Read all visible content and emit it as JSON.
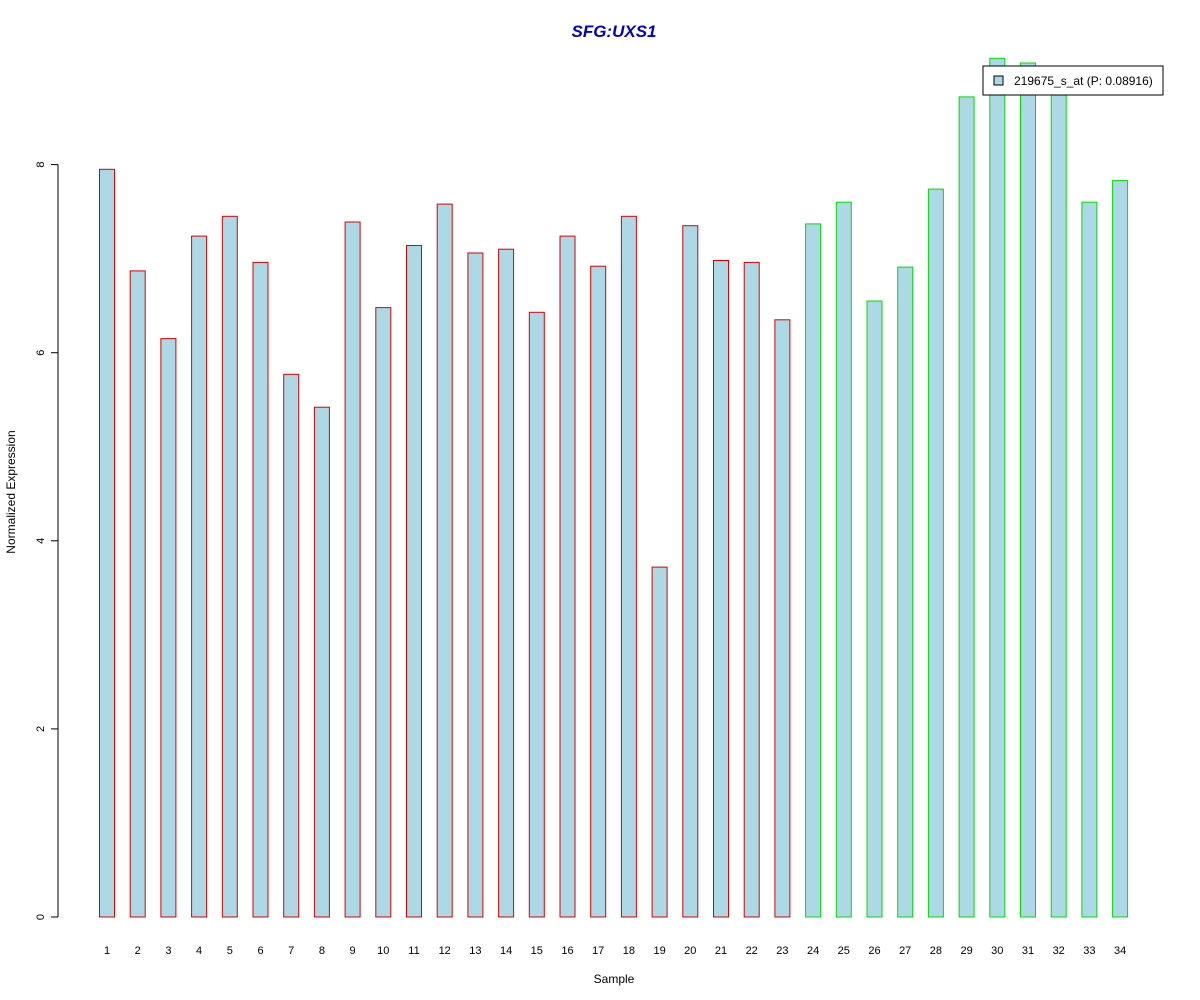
{
  "chart_data": {
    "type": "bar",
    "title": "SFG:UXS1",
    "xlabel": "Sample",
    "ylabel": "Normalized Expression",
    "categories": [
      "1",
      "2",
      "3",
      "4",
      "5",
      "6",
      "7",
      "8",
      "9",
      "10",
      "11",
      "12",
      "13",
      "14",
      "15",
      "16",
      "17",
      "18",
      "19",
      "20",
      "21",
      "22",
      "23",
      "24",
      "25",
      "26",
      "27",
      "28",
      "29",
      "30",
      "31",
      "32",
      "33",
      "34"
    ],
    "values": [
      7.95,
      6.87,
      6.15,
      7.24,
      7.45,
      6.96,
      5.77,
      5.42,
      7.39,
      6.48,
      7.14,
      7.58,
      7.06,
      7.1,
      6.43,
      7.24,
      6.92,
      7.45,
      3.72,
      7.35,
      6.98,
      6.96,
      6.35,
      7.37,
      7.6,
      6.55,
      6.91,
      7.74,
      8.72,
      9.13,
      9.08,
      8.82,
      7.6,
      7.83
    ],
    "group_colors": [
      "#dd0000",
      "#dd0000",
      "#dd0000",
      "#dd0000",
      "#dd0000",
      "#dd0000",
      "#dd0000",
      "#dd0000",
      "#dd0000",
      "#dd0000",
      "#dd0000",
      "#dd0000",
      "#dd0000",
      "#dd0000",
      "#dd0000",
      "#dd0000",
      "#dd0000",
      "#dd0000",
      "#dd0000",
      "#dd0000",
      "#dd0000",
      "#dd0000",
      "#dd0000",
      "#00dd00",
      "#00dd00",
      "#00dd00",
      "#00dd00",
      "#00dd00",
      "#00dd00",
      "#00dd00",
      "#00dd00",
      "#00dd00",
      "#00dd00",
      "#00dd00"
    ],
    "bar_fill": "#add8e6",
    "title_color": "#0000cc",
    "yticks": [
      0,
      2,
      4,
      6,
      8
    ],
    "ylim": [
      0,
      9.2
    ],
    "grid": false,
    "legend": {
      "position": "top-right",
      "entries": [
        {
          "label": "219675_s_at (P: 0.08916)",
          "color": "#add8e6"
        }
      ]
    }
  }
}
